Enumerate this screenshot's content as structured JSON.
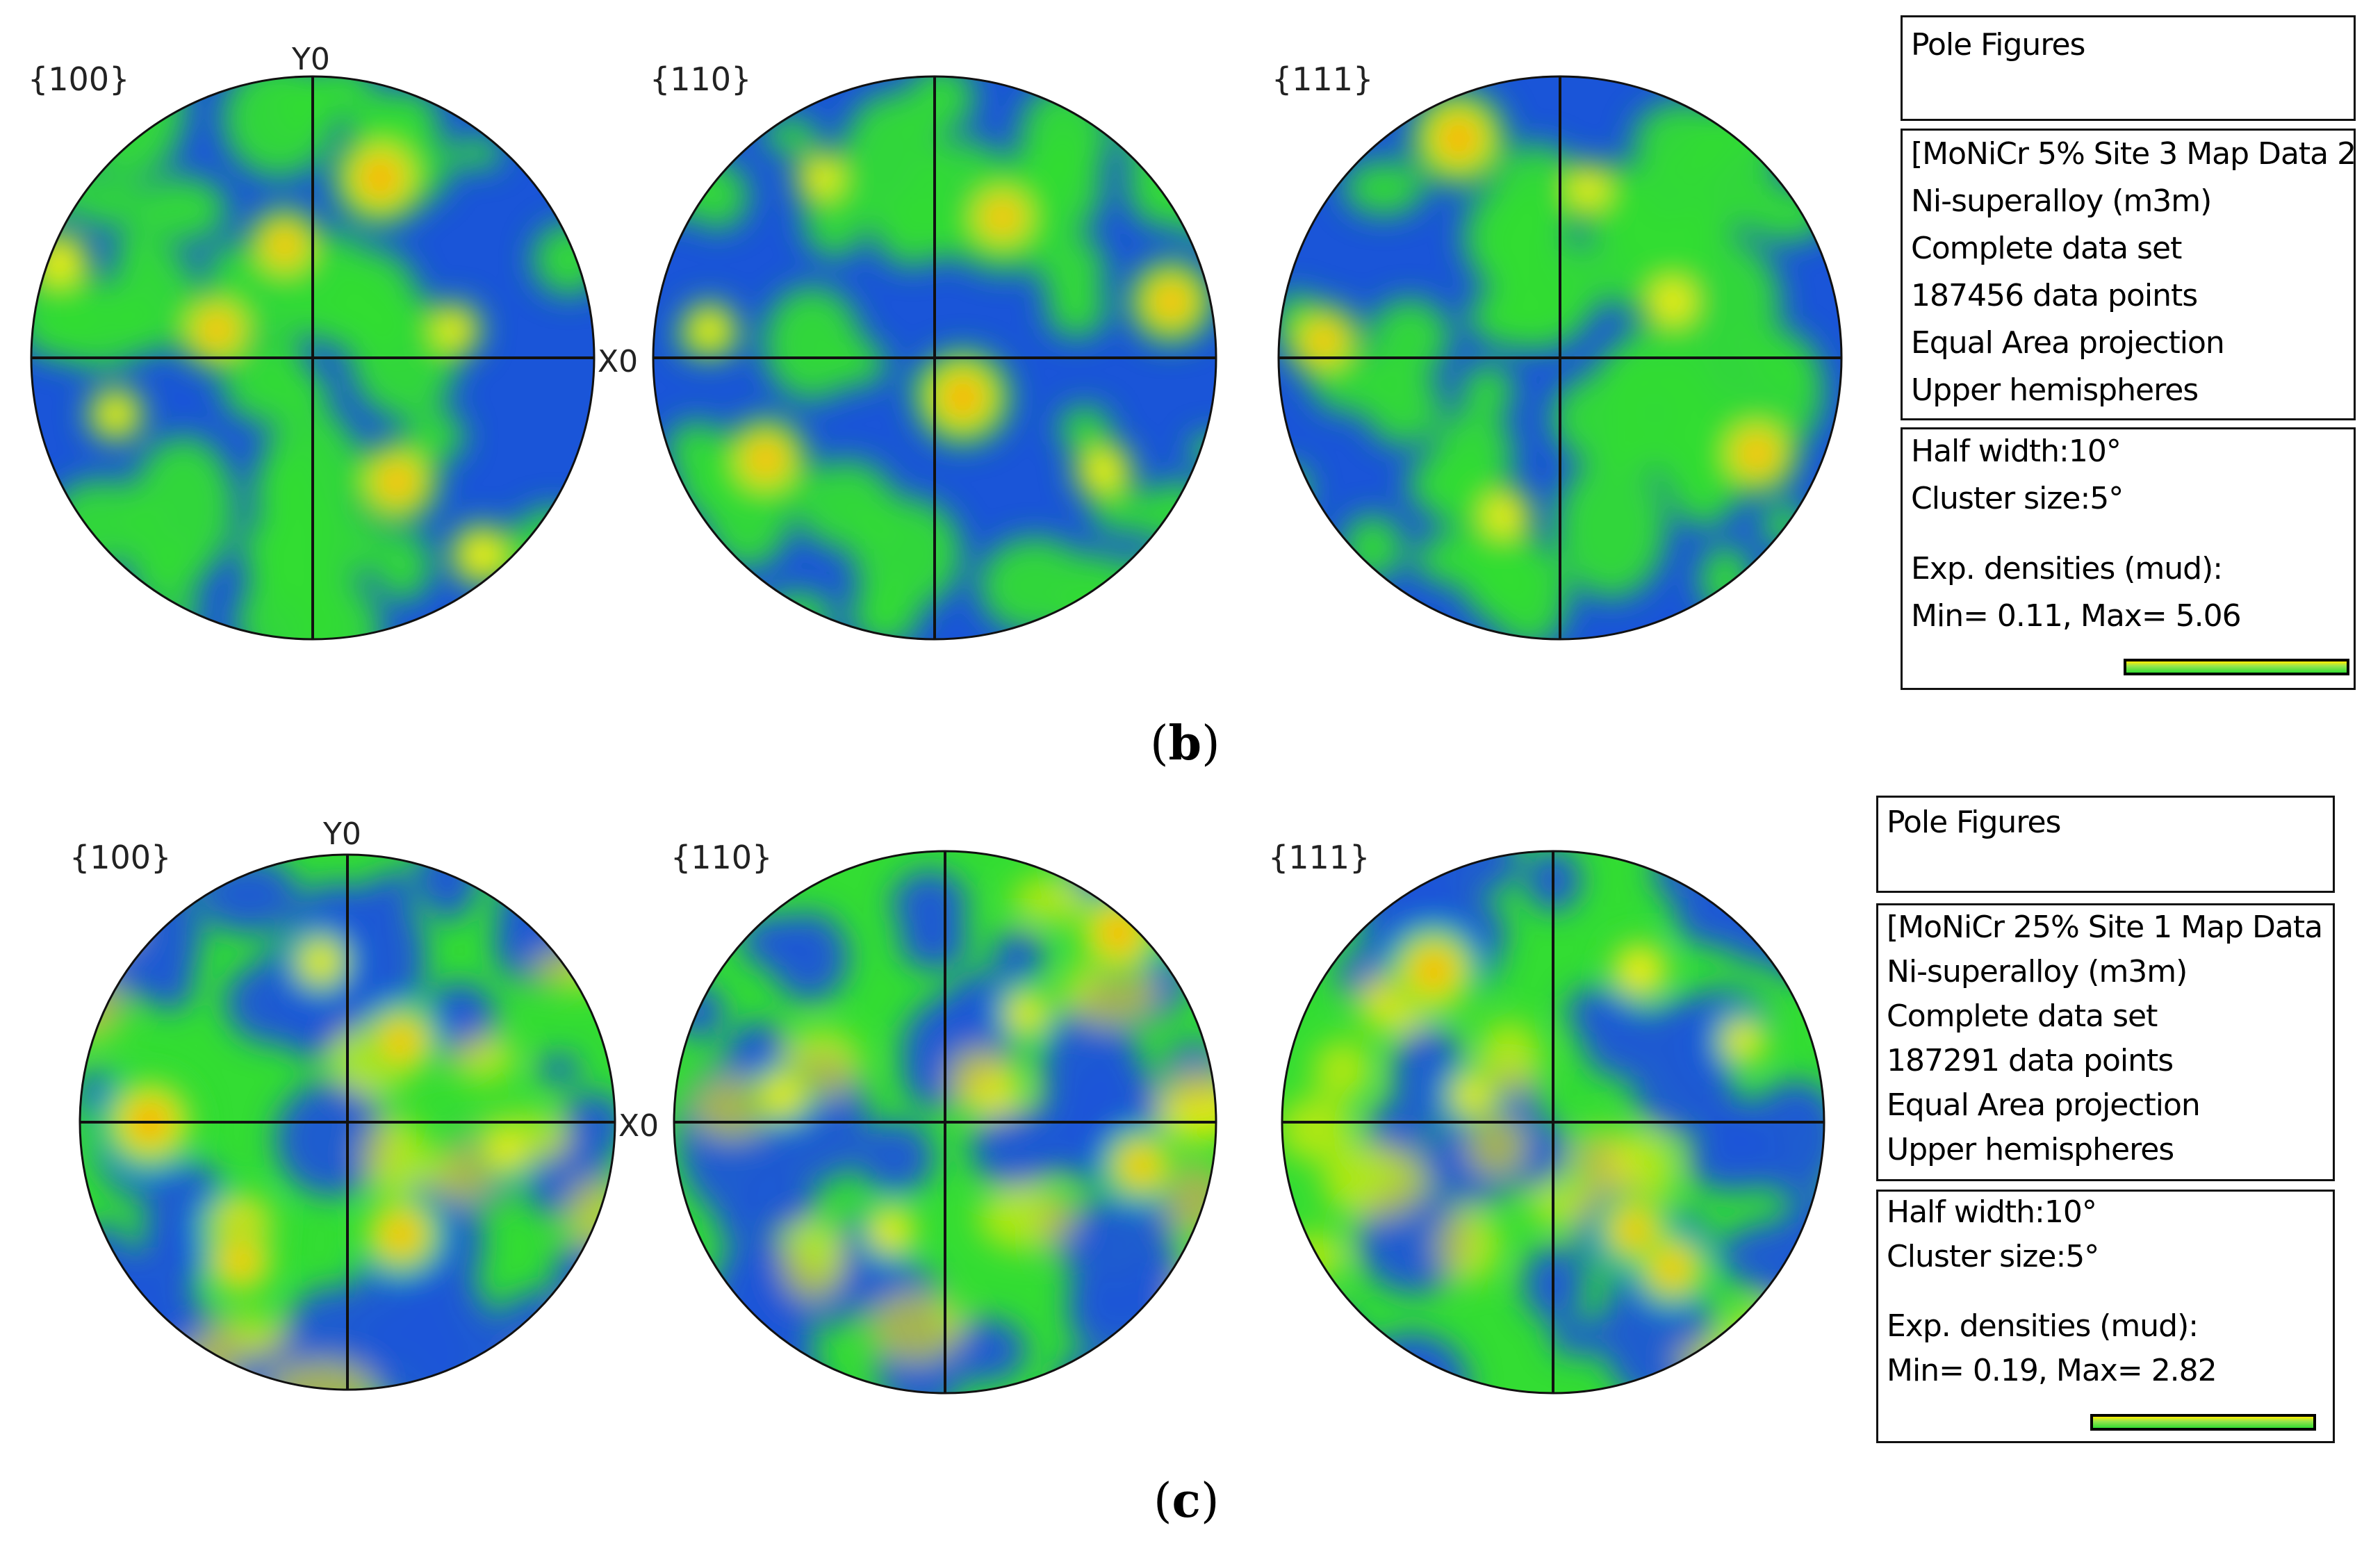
{
  "panels": [
    {
      "caption_open": "(",
      "caption_letter": "b",
      "caption_close": ")",
      "axis_labels": {
        "y": "Y0",
        "x": "X0"
      },
      "figures": [
        {
          "label": "{100}",
          "hotspots": [
            [
              0.62,
              0.18,
              1.0
            ],
            [
              0.33,
              0.45,
              0.8
            ],
            [
              0.05,
              0.33,
              0.6
            ],
            [
              0.45,
              0.3,
              0.75
            ],
            [
              0.65,
              0.72,
              0.85
            ],
            [
              0.8,
              0.85,
              0.6
            ],
            [
              0.15,
              0.6,
              0.5
            ],
            [
              0.75,
              0.45,
              0.5
            ]
          ]
        },
        {
          "label": "{110}",
          "hotspots": [
            [
              0.62,
              0.25,
              0.8
            ],
            [
              0.92,
              0.4,
              0.85
            ],
            [
              0.55,
              0.57,
              1.0
            ],
            [
              0.2,
              0.68,
              0.85
            ],
            [
              0.3,
              0.18,
              0.5
            ],
            [
              0.8,
              0.7,
              0.55
            ],
            [
              0.1,
              0.45,
              0.5
            ]
          ]
        },
        {
          "label": "{111}",
          "hotspots": [
            [
              0.32,
              0.11,
              1.0
            ],
            [
              0.08,
              0.47,
              0.75
            ],
            [
              0.85,
              0.67,
              0.85
            ],
            [
              0.7,
              0.4,
              0.6
            ],
            [
              0.4,
              0.78,
              0.55
            ],
            [
              0.55,
              0.2,
              0.5
            ]
          ]
        }
      ],
      "legend": {
        "title": "Pole Figures",
        "info": [
          "[MoNiCr 5% Site 3 Map Data 2",
          "Ni-superalloy (m3m)",
          "Complete data set",
          "187456 data points",
          "Equal Area projection",
          "Upper hemispheres"
        ],
        "params": [
          "Half width:10°",
          "Cluster size:5°",
          "",
          "Exp. densities (mud):",
          "Min= 0.11, Max= 5.06"
        ]
      }
    },
    {
      "caption_open": "(",
      "caption_letter": "c",
      "caption_close": ")",
      "axis_labels": {
        "y": "Y0",
        "x": "X0"
      },
      "figures": [
        {
          "label": "{100}",
          "hotspots": [
            [
              0.13,
              0.5,
              1.0
            ],
            [
              0.3,
              0.7,
              0.8
            ],
            [
              0.6,
              0.35,
              0.75
            ],
            [
              0.6,
              0.71,
              0.8
            ],
            [
              0.3,
              0.76,
              0.7
            ],
            [
              0.45,
              0.2,
              0.5
            ],
            [
              0.8,
              0.55,
              0.5
            ]
          ]
        },
        {
          "label": "{110}",
          "hotspots": [
            [
              0.82,
              0.15,
              0.9
            ],
            [
              0.86,
              0.58,
              0.7
            ],
            [
              0.2,
              0.45,
              0.5
            ],
            [
              0.4,
              0.7,
              0.5
            ],
            [
              0.65,
              0.3,
              0.45
            ]
          ]
        },
        {
          "label": "{111}",
          "hotspots": [
            [
              0.28,
              0.22,
              0.9
            ],
            [
              0.66,
              0.22,
              0.6
            ],
            [
              0.65,
              0.7,
              0.7
            ],
            [
              0.72,
              0.77,
              0.7
            ],
            [
              0.35,
              0.45,
              0.45
            ],
            [
              0.85,
              0.35,
              0.45
            ]
          ]
        }
      ],
      "legend": {
        "title": "Pole Figures",
        "info": [
          "[MoNiCr 25% Site 1 Map Data ",
          "Ni-superalloy (m3m)",
          "Complete data set",
          "187291 data points",
          "Equal Area projection",
          "Upper hemispheres"
        ],
        "params": [
          "Half width:10°",
          "Cluster size:5°",
          "",
          "Exp. densities (mud):",
          "Min= 0.19, Max= 2.82"
        ]
      }
    }
  ],
  "colors": {
    "low": "#1a55d8",
    "mid": "#33dd33",
    "high": "#ffee00",
    "peak": "#ee2200",
    "axis": "#111111"
  },
  "background_texture_b": "blue-dominant",
  "background_texture_c": "green-dominant"
}
